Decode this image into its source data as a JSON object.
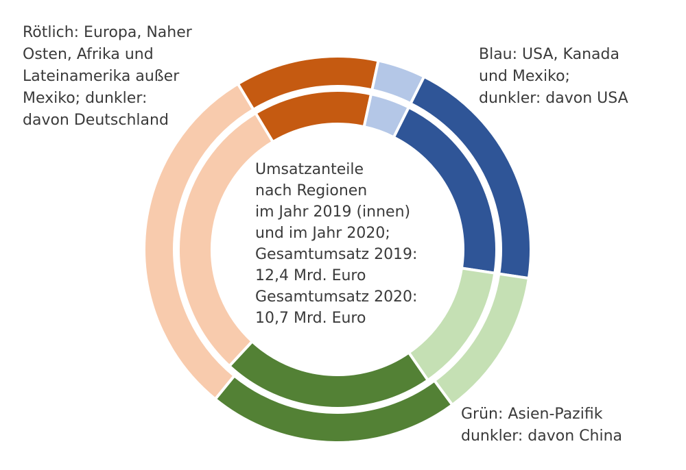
{
  "chart_data": {
    "type": "donut",
    "colors": [
      "#c55a11",
      "#b4c7e7",
      "#2f5597",
      "#c5e0b4",
      "#538135",
      "#f8cbad"
    ],
    "series": [
      {
        "values": [
          12,
          4,
          20,
          12.5,
          21,
          30.5
        ]
      },
      {
        "values": [
          12,
          4,
          20,
          13,
          21.5,
          29.5
        ]
      }
    ],
    "center_text": [
      "Umsatzanteile",
      "nach Regionen",
      "im Jahr 2019 (innen)",
      "und im Jahr 2020;",
      "Gesamtumsatz 2019:",
      "12,4 Mrd. Euro",
      "Gesamtumsatz 2020:",
      "10,7 Mrd. Euro"
    ],
    "annotations": [
      [
        "Rötlich: Europa, Naher",
        "Osten, Afrika und",
        "Lateinamerika außer",
        "Mexiko; dunkler:",
        "davon Deutschland"
      ],
      [
        "Blau: USA, Kanada",
        "und Mexiko;",
        "dunkler: davon USA"
      ],
      [
        "Grün: Asien-Pazifik",
        "dunkler: davon China"
      ]
    ]
  }
}
